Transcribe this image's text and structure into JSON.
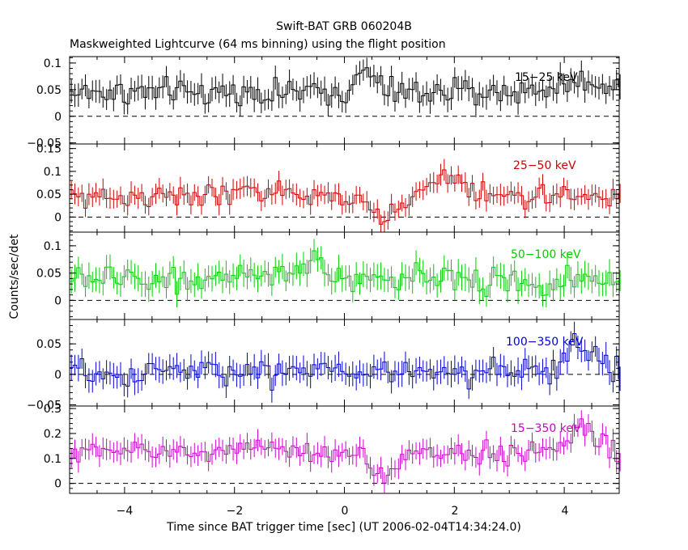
{
  "figure": {
    "title": "Swift-BAT GRB 060204B",
    "subtitle": "Maskweighted Lightcurve (64 ms binning) using the flight position",
    "ylabel": "Counts/sec/det",
    "xlabel": "Time since BAT trigger time [sec] (UT 2006-02-04T14:34:24.0)"
  },
  "chart_data": [
    {
      "type": "line",
      "band": "15-25 keV",
      "color": "#000000",
      "ylim": [
        -0.052,
        0.112
      ],
      "yticks": [
        -0.05,
        0,
        0.05,
        0.1
      ],
      "yticklabels": [
        "-0.05",
        "0",
        "0.05",
        "0.1"
      ],
      "xlim": [
        -5,
        5
      ],
      "xticks": [
        -4,
        -2,
        0,
        2,
        4
      ],
      "baseline": 0.045,
      "noise": 0.022,
      "err": 0.021,
      "features": [
        [
          4.4,
          0.5,
          0.02
        ],
        [
          0.4,
          0.15,
          0.04
        ]
      ]
    },
    {
      "type": "line",
      "band": "25-50 keV",
      "color": "#cc0000",
      "ylim": [
        -0.033,
        0.16
      ],
      "yticks": [
        0,
        0.05,
        0.1,
        0.15
      ],
      "yticklabels": [
        "0",
        "0.05",
        "0.1",
        "0.15"
      ],
      "xlim": [
        -5,
        5
      ],
      "xticks": [
        -4,
        -2,
        0,
        2,
        4
      ],
      "baseline": 0.045,
      "noise": 0.022,
      "err": 0.021,
      "features": [
        [
          0.7,
          0.25,
          -0.05
        ],
        [
          1.9,
          0.3,
          0.045
        ],
        [
          -1.6,
          0.3,
          0.015
        ]
      ]
    },
    {
      "type": "line",
      "band": "50-100 keV",
      "color": "#00cc00",
      "ylim": [
        -0.035,
        0.125
      ],
      "yticks": [
        0,
        0.05,
        0.1
      ],
      "yticklabels": [
        "0",
        "0.05",
        "0.1"
      ],
      "xlim": [
        -5,
        5
      ],
      "xticks": [
        -4,
        -2,
        0,
        2,
        4
      ],
      "baseline": 0.04,
      "noise": 0.022,
      "err": 0.022,
      "features": [
        [
          -0.5,
          0.15,
          0.04
        ],
        [
          3.5,
          0.3,
          -0.02
        ]
      ]
    },
    {
      "type": "line",
      "band": "100-350 keV",
      "color": "#0000cc",
      "ylim": [
        -0.052,
        0.09
      ],
      "yticks": [
        -0.05,
        0,
        0.05
      ],
      "yticklabels": [
        "-0.05",
        "0",
        "0.05"
      ],
      "xlim": [
        -5,
        5
      ],
      "xticks": [
        -4,
        -2,
        0,
        2,
        4
      ],
      "baseline": 0.005,
      "noise": 0.02,
      "err": 0.019,
      "features": [
        [
          4.3,
          0.25,
          0.04
        ],
        [
          -4.2,
          0.3,
          -0.015
        ]
      ]
    },
    {
      "type": "line",
      "band": "15-350 keV",
      "color": "#cc00cc",
      "ylim": [
        -0.04,
        0.31
      ],
      "yticks": [
        0,
        0.1,
        0.2,
        0.3
      ],
      "yticklabels": [
        "0",
        "0.1",
        "0.2",
        "0.3"
      ],
      "xlim": [
        -5,
        5
      ],
      "xticks": [
        -4,
        -2,
        0,
        2,
        4
      ],
      "baseline": 0.125,
      "noise": 0.04,
      "err": 0.04,
      "features": [
        [
          0.7,
          0.25,
          -0.1
        ],
        [
          4.4,
          0.25,
          0.1
        ],
        [
          -1.6,
          0.4,
          0.03
        ]
      ]
    }
  ],
  "xtick_labels": [
    "−4",
    "−2",
    "0",
    "2",
    "4"
  ]
}
